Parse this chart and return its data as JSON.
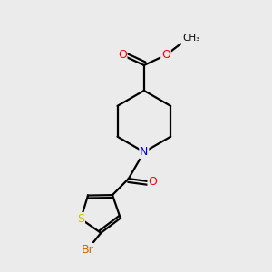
{
  "background_color": "#ebebeb",
  "bond_color": "#000000",
  "atom_colors": {
    "O": "#ff0000",
    "N": "#0000ff",
    "S": "#ccbb00",
    "Br": "#cc6600",
    "C": "#000000"
  },
  "figsize": [
    3.0,
    3.0
  ],
  "dpi": 100,
  "lw": 1.6
}
